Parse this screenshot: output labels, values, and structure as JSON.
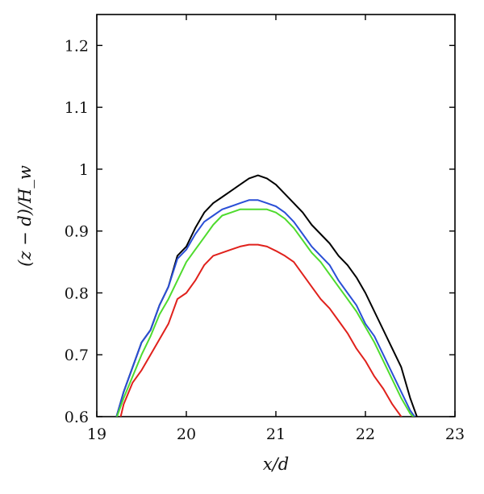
{
  "chart_data": {
    "type": "line",
    "xlabel": "x/d",
    "ylabel": "(z − d)/H_w",
    "xlim": [
      19,
      23
    ],
    "ylim": [
      0.6,
      1.25
    ],
    "xticks": [
      "19",
      "20",
      "21",
      "22",
      "23"
    ],
    "yticks": [
      "0.6",
      "0.7",
      "0.8",
      "0.9",
      "1",
      "1.1",
      "1.2"
    ],
    "grid": false,
    "series": [
      {
        "color": "#000000",
        "x": [
          19.2,
          19.3,
          19.4,
          19.5,
          19.6,
          19.7,
          19.8,
          19.9,
          20.0,
          20.1,
          20.2,
          20.3,
          20.4,
          20.5,
          20.6,
          20.7,
          20.8,
          20.9,
          21.0,
          21.1,
          21.2,
          21.3,
          21.4,
          21.5,
          21.6,
          21.7,
          21.8,
          21.9,
          22.0,
          22.1,
          22.2,
          22.3,
          22.4,
          22.5,
          22.6
        ],
        "y": [
          0.59,
          0.64,
          0.68,
          0.72,
          0.74,
          0.78,
          0.81,
          0.86,
          0.875,
          0.905,
          0.93,
          0.945,
          0.955,
          0.965,
          0.975,
          0.985,
          0.99,
          0.985,
          0.975,
          0.96,
          0.945,
          0.93,
          0.91,
          0.895,
          0.88,
          0.86,
          0.845,
          0.825,
          0.8,
          0.77,
          0.74,
          0.71,
          0.68,
          0.63,
          0.59
        ]
      },
      {
        "color": "#2a4fd6",
        "x": [
          19.2,
          19.3,
          19.4,
          19.5,
          19.6,
          19.7,
          19.8,
          19.9,
          20.0,
          20.1,
          20.2,
          20.3,
          20.4,
          20.5,
          20.6,
          20.7,
          20.8,
          20.9,
          21.0,
          21.1,
          21.2,
          21.3,
          21.4,
          21.5,
          21.6,
          21.7,
          21.8,
          21.9,
          22.0,
          22.1,
          22.2,
          22.3,
          22.4,
          22.5,
          22.6
        ],
        "y": [
          0.59,
          0.64,
          0.68,
          0.72,
          0.74,
          0.78,
          0.81,
          0.855,
          0.87,
          0.895,
          0.915,
          0.925,
          0.935,
          0.94,
          0.945,
          0.95,
          0.95,
          0.945,
          0.94,
          0.93,
          0.915,
          0.895,
          0.875,
          0.86,
          0.845,
          0.82,
          0.8,
          0.78,
          0.75,
          0.73,
          0.7,
          0.67,
          0.64,
          0.61,
          0.59
        ]
      },
      {
        "color": "#4fdb2e",
        "x": [
          19.2,
          19.3,
          19.4,
          19.5,
          19.6,
          19.7,
          19.8,
          19.9,
          20.0,
          20.1,
          20.2,
          20.3,
          20.4,
          20.5,
          20.6,
          20.7,
          20.8,
          20.9,
          21.0,
          21.1,
          21.2,
          21.3,
          21.4,
          21.5,
          21.6,
          21.7,
          21.8,
          21.9,
          22.0,
          22.1,
          22.2,
          22.3,
          22.4,
          22.5,
          22.6
        ],
        "y": [
          0.59,
          0.63,
          0.665,
          0.7,
          0.73,
          0.765,
          0.79,
          0.82,
          0.85,
          0.87,
          0.89,
          0.91,
          0.925,
          0.93,
          0.935,
          0.935,
          0.935,
          0.935,
          0.93,
          0.92,
          0.905,
          0.885,
          0.865,
          0.85,
          0.83,
          0.81,
          0.79,
          0.77,
          0.745,
          0.72,
          0.69,
          0.66,
          0.63,
          0.605,
          0.59
        ]
      },
      {
        "color": "#e0211c",
        "x": [
          19.25,
          19.3,
          19.4,
          19.5,
          19.6,
          19.7,
          19.8,
          19.9,
          20.0,
          20.1,
          20.2,
          20.3,
          20.4,
          20.5,
          20.6,
          20.7,
          20.8,
          20.9,
          21.0,
          21.1,
          21.2,
          21.3,
          21.4,
          21.5,
          21.6,
          21.7,
          21.8,
          21.9,
          22.0,
          22.1,
          22.2,
          22.3,
          22.4,
          22.5
        ],
        "y": [
          0.59,
          0.62,
          0.655,
          0.675,
          0.7,
          0.725,
          0.75,
          0.79,
          0.8,
          0.82,
          0.845,
          0.86,
          0.865,
          0.87,
          0.875,
          0.878,
          0.878,
          0.875,
          0.868,
          0.86,
          0.85,
          0.83,
          0.81,
          0.79,
          0.775,
          0.755,
          0.735,
          0.71,
          0.69,
          0.665,
          0.645,
          0.62,
          0.6,
          0.58
        ]
      }
    ]
  }
}
